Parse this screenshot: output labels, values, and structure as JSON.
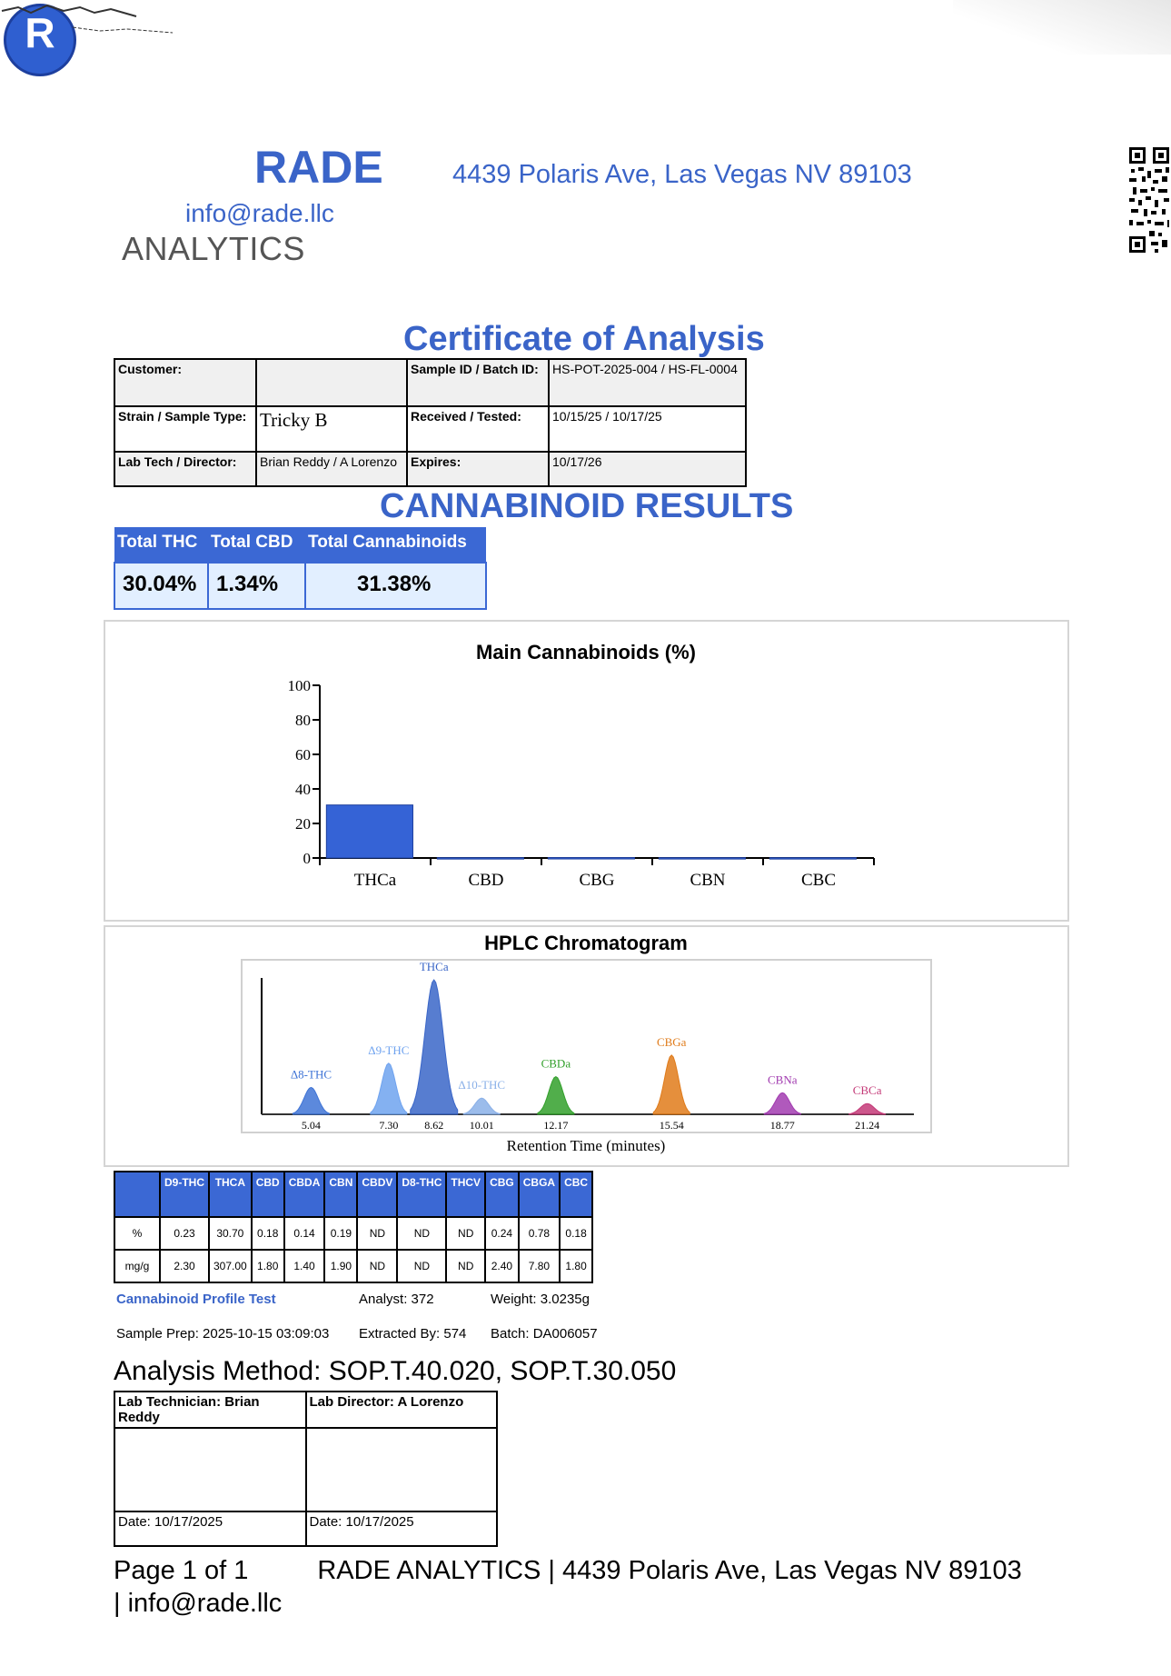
{
  "header": {
    "logo_letter": "R",
    "brand_name": "RADE",
    "address": "4439 Polaris Ave, Las Vegas NV 89103",
    "email": "info@rade.llc",
    "brand_sub": "ANALYTICS"
  },
  "title": "Certificate of Analysis",
  "info": {
    "customer_label": "Customer:",
    "customer_value": "",
    "sample_id_label": "Sample ID / Batch ID:",
    "sample_id_value": "HS-POT-2025-004 / HS-FL-0004",
    "strain_label": "Strain / Sample Type:",
    "strain_value": "Tricky B",
    "received_label": "Received / Tested:",
    "received_value": "10/15/25 / 10/17/25",
    "labtech_label": "Lab Tech / Director:",
    "labtech_value": "Brian Reddy / A Lorenzo",
    "expires_label": "Expires:",
    "expires_value": "10/17/26"
  },
  "results_title": "CANNABINOID RESULTS",
  "totals": {
    "headers": [
      "Total THC",
      "Total CBD",
      "Total Cannabinoids"
    ],
    "values": [
      "30.04%",
      "1.34%",
      "31.38%"
    ]
  },
  "chart_data": [
    {
      "type": "bar",
      "title": "Main Cannabinoids (%)",
      "categories": [
        "THCa",
        "CBD",
        "CBG",
        "CBN",
        "CBC"
      ],
      "values": [
        30.7,
        0.18,
        0.24,
        0.19,
        0.18
      ],
      "ylim": [
        0,
        100
      ],
      "yticks": [
        "0",
        "20",
        "40",
        "60",
        "80",
        "100"
      ],
      "colors": [
        "#3563d6"
      ]
    },
    {
      "type": "line",
      "title": "HPLC Chromatogram",
      "xlabel": "Retention Time (minutes)",
      "xlim": [
        3.6,
        22.6
      ],
      "xticks": [
        "5.04",
        "7.30",
        "8.62",
        "10.01",
        "12.17",
        "15.54",
        "18.77",
        "21.24"
      ],
      "peaks": [
        {
          "name": "Δ8-THC",
          "rt": 5.04,
          "height": 0.2,
          "color": "#3f74d6"
        },
        {
          "name": "Δ9-THC",
          "rt": 7.3,
          "height": 0.38,
          "color": "#6fa3ef"
        },
        {
          "name": "THCa",
          "rt": 8.62,
          "height": 1.0,
          "color": "#3a66c8"
        },
        {
          "name": "Δ10-THC",
          "rt": 10.01,
          "height": 0.12,
          "color": "#8ab0e8"
        },
        {
          "name": "CBDa",
          "rt": 12.17,
          "height": 0.28,
          "color": "#33a02c"
        },
        {
          "name": "CBGa",
          "rt": 15.54,
          "height": 0.44,
          "color": "#e07b1a"
        },
        {
          "name": "CBNa",
          "rt": 18.77,
          "height": 0.16,
          "color": "#a23cb0"
        },
        {
          "name": "CBCa",
          "rt": 21.24,
          "height": 0.08,
          "color": "#c43a78"
        }
      ]
    }
  ],
  "profile": {
    "headers": [
      "",
      "D9-THC",
      "THCA",
      "CBD",
      "CBDA",
      "CBN",
      "CBDV",
      "D8-THC",
      "THCV",
      "CBG",
      "CBGA",
      "CBC"
    ],
    "rows": [
      [
        "%",
        "0.23",
        "30.70",
        "0.18",
        "0.14",
        "0.19",
        "ND",
        "ND",
        "ND",
        "0.24",
        "0.78",
        "0.18"
      ],
      [
        "mg/g",
        "2.30",
        "307.00",
        "1.80",
        "1.40",
        "1.90",
        "ND",
        "ND",
        "ND",
        "2.40",
        "7.80",
        "1.80"
      ]
    ]
  },
  "meta": {
    "profile_test": "Cannabinoid Profile Test",
    "analyst": "Analyst: 372",
    "weight": "Weight: 3.0235g",
    "sample_prep": "Sample Prep: 2025-10-15 03:09:03",
    "extracted_by": "Extracted By: 574",
    "batch": "Batch: DA006057"
  },
  "method": "Analysis Method: SOP.T.40.020, SOP.T.30.050",
  "signatures": {
    "tech_label": "Lab Technician: Brian Reddy",
    "director_label": "Lab Director: A Lorenzo",
    "tech_date": "Date: 10/17/2025",
    "director_date": "Date: 10/17/2025"
  },
  "footer": {
    "page": "Page 1 of 1",
    "text": "RADE ANALYTICS | 4439 Polaris Ave, Las Vegas NV 89103 | info@rade.llc"
  }
}
